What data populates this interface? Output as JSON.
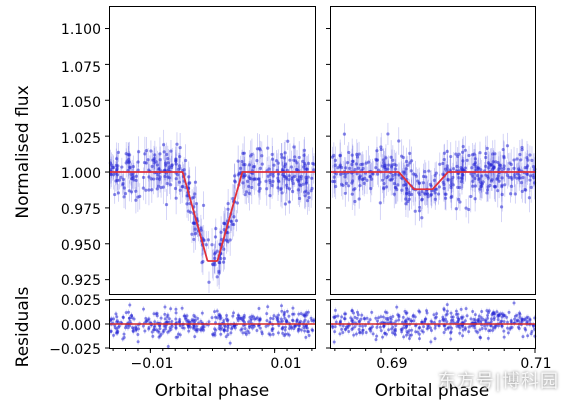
{
  "chart_data": {
    "type": "scatter",
    "ylabel_main": "Normalised flux",
    "ylabel_resid": "Residuals",
    "xlabel": "Orbital phase",
    "main_ylim": [
      0.915,
      1.115
    ],
    "main_yticks": [
      "1.100",
      "1.075",
      "1.050",
      "1.025",
      "1.000",
      "0.975",
      "0.950",
      "0.925"
    ],
    "resid_ylim": [
      -0.025,
      0.025
    ],
    "resid_yticks": [
      "0.025",
      "0.000",
      "−0.025"
    ],
    "panels": [
      {
        "name": "primary-eclipse",
        "xlim": [
          -0.0165,
          0.0165
        ],
        "xticks": [
          "−0.01",
          "0.01"
        ],
        "xtick_values": [
          -0.01,
          0.01
        ],
        "eclipse": {
          "center": 0.0,
          "depth": 0.062,
          "half_width": 0.0048,
          "ingress": 0.004
        }
      },
      {
        "name": "secondary-eclipse",
        "xlim": [
          0.6835,
          0.71
        ],
        "xticks": [
          "0.69",
          "0.71"
        ],
        "xtick_values": [
          0.69,
          0.71
        ],
        "eclipse": {
          "center": 0.6955,
          "depth": 0.012,
          "half_width": 0.0032,
          "ingress": 0.002
        }
      }
    ],
    "noise_sigma": 0.009,
    "resid_sigma": 0.007,
    "point_color": "#2a2ad6",
    "model_color": "#e0303a",
    "residual_line_color": "#d62828"
  },
  "watermark": "东方号|博科园"
}
